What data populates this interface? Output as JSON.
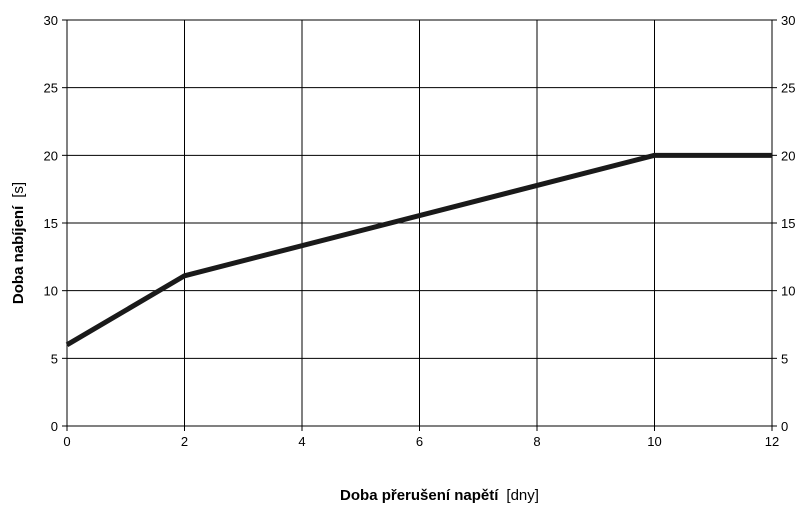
{
  "chart_data": {
    "type": "line",
    "xlabel": "Doba přerušení napětí",
    "xlabel_unit": "[dny]",
    "ylabel": "Doba nabíjení",
    "ylabel_unit": "[s]",
    "xlim": [
      0,
      12
    ],
    "ylim": [
      0,
      30
    ],
    "xticks": [
      0,
      2,
      4,
      6,
      8,
      10,
      12
    ],
    "yticks": [
      0,
      5,
      10,
      15,
      20,
      25,
      30
    ],
    "grid": true,
    "right_axis_labels": true,
    "series": [
      {
        "color": "#1a1a1a",
        "x": [
          0,
          2,
          10,
          12
        ],
        "y": [
          6,
          11.1,
          20,
          20
        ]
      }
    ]
  }
}
